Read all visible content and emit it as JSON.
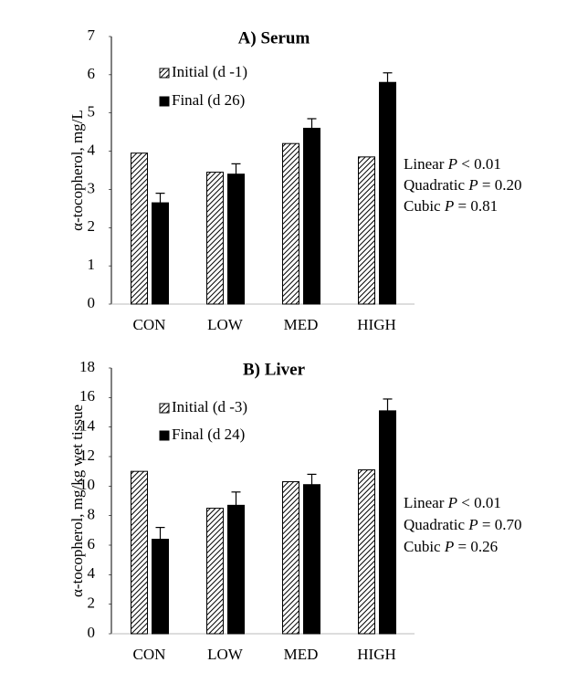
{
  "chart_data": [
    {
      "type": "bar",
      "title": "A) Serum",
      "y_label": "α-tocopherol, mg/L",
      "categories": [
        "CON",
        "LOW",
        "MED",
        "HIGH"
      ],
      "series": [
        {
          "name": "Initial (d -1)",
          "color": "#000000",
          "hatch": true,
          "values": [
            3.95,
            3.45,
            4.2,
            3.85
          ]
        },
        {
          "name": "Final (d 26)",
          "color": "#000000",
          "hatch": false,
          "values": [
            2.65,
            3.4,
            4.6,
            5.8
          ],
          "errors": [
            0.25,
            0.27,
            0.25,
            0.25
          ]
        }
      ],
      "ylim": [
        0,
        7
      ],
      "yticks": [
        0,
        1,
        2,
        3,
        4,
        5,
        6,
        7
      ],
      "grid": false,
      "annotations": [
        {
          "before": "Linear ",
          "p": "P",
          "after": " < 0.01"
        },
        {
          "before": "Quadratic ",
          "p": "P",
          "after": " = 0.20"
        },
        {
          "before": "Cubic ",
          "p": "P",
          "after": " = 0.81"
        }
      ]
    },
    {
      "type": "bar",
      "title": "B) Liver",
      "y_label": "α-tocopherol, mg/kg wet tissue",
      "categories": [
        "CON",
        "LOW",
        "MED",
        "HIGH"
      ],
      "series": [
        {
          "name": "Initial (d -3)",
          "color": "#000000",
          "hatch": true,
          "values": [
            11.0,
            8.5,
            10.3,
            11.1
          ]
        },
        {
          "name": "Final (d 24)",
          "color": "#000000",
          "hatch": false,
          "values": [
            6.4,
            8.7,
            10.1,
            15.1
          ],
          "errors": [
            0.8,
            0.9,
            0.7,
            0.8
          ]
        }
      ],
      "ylim": [
        0,
        18
      ],
      "yticks": [
        0,
        2,
        4,
        6,
        8,
        10,
        12,
        14,
        16,
        18
      ],
      "grid": false,
      "annotations": [
        {
          "before": "Linear ",
          "p": "P",
          "after": " < 0.01"
        },
        {
          "before": "Quadratic ",
          "p": "P",
          "after": " = 0.70"
        },
        {
          "before": "Cubic ",
          "p": "P",
          "after": " = 0.26"
        }
      ]
    }
  ]
}
